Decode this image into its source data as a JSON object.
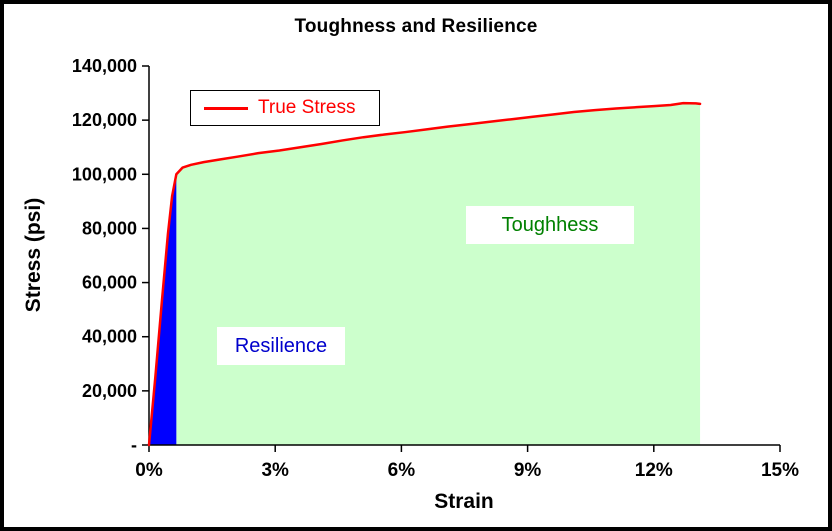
{
  "chart_data": {
    "type": "line",
    "title": "Toughness and Resilience",
    "xlabel": "Strain",
    "ylabel": "Stress (psi)",
    "xlim": [
      0,
      15
    ],
    "ylim": [
      0,
      140000
    ],
    "grid": false,
    "x_ticks": [
      0,
      3,
      6,
      9,
      12,
      15
    ],
    "x_tick_labels": [
      "0%",
      "3%",
      "6%",
      "9%",
      "12%",
      "15%"
    ],
    "y_ticks": [
      0,
      20000,
      40000,
      60000,
      80000,
      100000,
      120000,
      140000
    ],
    "y_tick_labels": [
      "-",
      "20,000",
      "40,000",
      "60,000",
      "80,000",
      "100,000",
      "120,000",
      "140,000"
    ],
    "legend": {
      "position": "top-left",
      "label": "True Stress"
    },
    "series": [
      {
        "name": "True Stress",
        "color": "#FF0000",
        "x": [
          0,
          0.15,
          0.3,
          0.45,
          0.55,
          0.65,
          0.8,
          1.0,
          1.3,
          1.7,
          2.1,
          2.6,
          3.1,
          3.6,
          4.1,
          4.6,
          5.1,
          5.6,
          6.1,
          6.6,
          7.1,
          7.6,
          8.1,
          8.6,
          9.1,
          9.6,
          10.1,
          10.6,
          11.1,
          11.6,
          12.0,
          12.4,
          12.7,
          13.0,
          13.1
        ],
        "y": [
          0,
          25000,
          52000,
          78000,
          92000,
          100000,
          102500,
          103500,
          104500,
          105500,
          106500,
          107800,
          108800,
          110000,
          111200,
          112500,
          113700,
          114700,
          115600,
          116600,
          117600,
          118500,
          119400,
          120300,
          121200,
          122100,
          123000,
          123700,
          124300,
          124800,
          125200,
          125600,
          126300,
          126200,
          126000
        ]
      }
    ],
    "regions": [
      {
        "name": "Toughness",
        "label": "Toughhess",
        "fill": "#CCFFCC",
        "text_color": "#008000",
        "x_start": 0.65,
        "x_end": 13.1
      },
      {
        "name": "Resilience",
        "label": "Resilience",
        "fill": "#0000FF",
        "text_color": "#0000CC",
        "x_start": 0,
        "x_end": 0.65
      }
    ]
  }
}
